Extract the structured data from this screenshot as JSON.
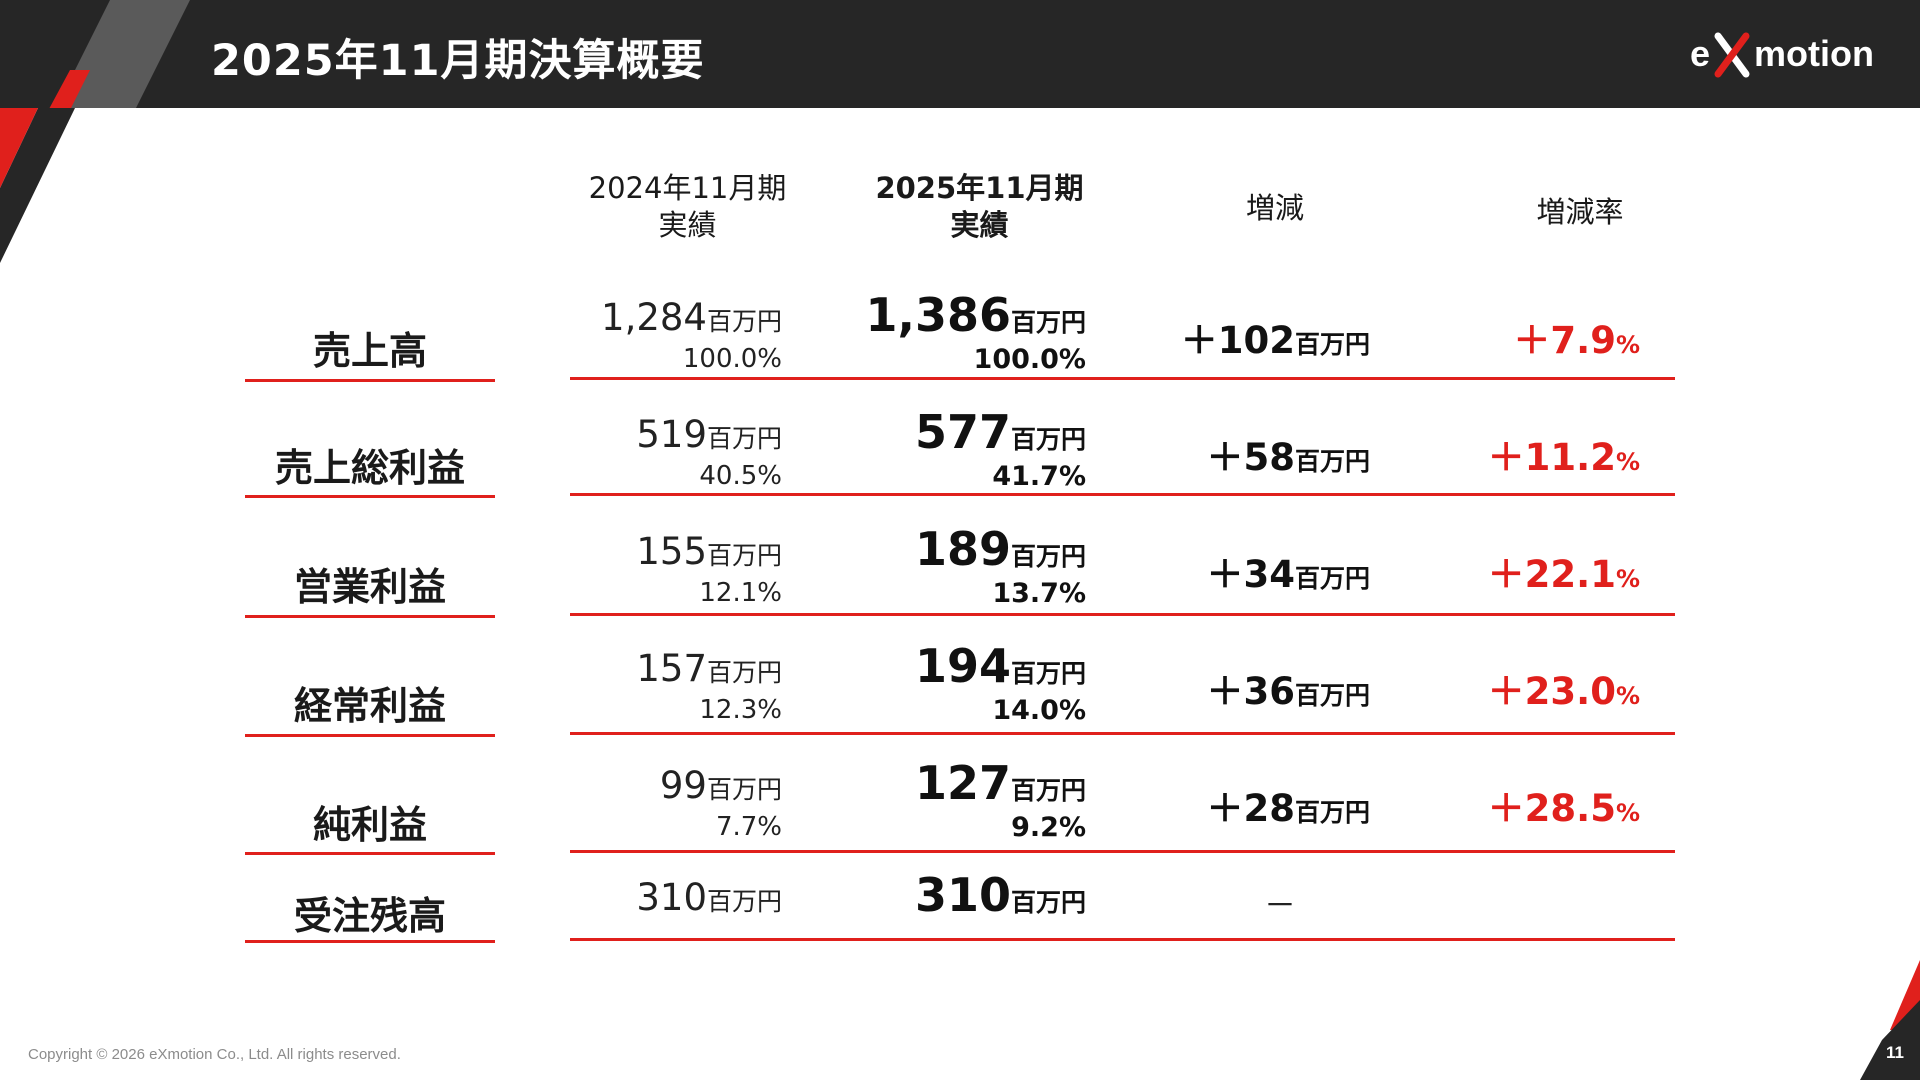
{
  "header": {
    "title": "2025年11月期決算概要",
    "logo_left": "e",
    "logo_right": "motion"
  },
  "columns": {
    "prev_line1": "2024年11月期",
    "prev_line2": "実績",
    "curr_line1": "2025年11月期",
    "curr_line2": "実績",
    "diff": "増減",
    "rate": "増減率"
  },
  "rows": [
    {
      "label": "売上高",
      "prev_value": "1,284",
      "prev_unit": "百万円",
      "prev_pct": "100.0%",
      "curr_value": "1,386",
      "curr_unit": "百万円",
      "curr_pct": "100.0%",
      "diff_value": "＋102",
      "diff_unit": "百万円",
      "rate_value": "＋7.9",
      "rate_unit": "%"
    },
    {
      "label": "売上総利益",
      "prev_value": "519",
      "prev_unit": "百万円",
      "prev_pct": "40.5%",
      "curr_value": "577",
      "curr_unit": "百万円",
      "curr_pct": "41.7%",
      "diff_value": "＋58",
      "diff_unit": "百万円",
      "rate_value": "＋11.2",
      "rate_unit": "%"
    },
    {
      "label": "営業利益",
      "prev_value": "155",
      "prev_unit": "百万円",
      "prev_pct": "12.1%",
      "curr_value": "189",
      "curr_unit": "百万円",
      "curr_pct": "13.7%",
      "diff_value": "＋34",
      "diff_unit": "百万円",
      "rate_value": "＋22.1",
      "rate_unit": "%"
    },
    {
      "label": "経常利益",
      "prev_value": "157",
      "prev_unit": "百万円",
      "prev_pct": "12.3%",
      "curr_value": "194",
      "curr_unit": "百万円",
      "curr_pct": "14.0%",
      "diff_value": "＋36",
      "diff_unit": "百万円",
      "rate_value": "＋23.0",
      "rate_unit": "%"
    },
    {
      "label": "純利益",
      "prev_value": "99",
      "prev_unit": "百万円",
      "prev_pct": "7.7%",
      "curr_value": "127",
      "curr_unit": "百万円",
      "curr_pct": "9.2%",
      "diff_value": "＋28",
      "diff_unit": "百万円",
      "rate_value": "＋28.5",
      "rate_unit": "%"
    },
    {
      "label": "受注残高",
      "prev_value": "310",
      "prev_unit": "百万円",
      "curr_value": "310",
      "curr_unit": "百万円",
      "diff_dash": "－"
    }
  ],
  "footer": {
    "copyright": "Copyright © 2026 eXmotion Co., Ltd. All rights reserved.",
    "page_number": "11"
  },
  "colors": {
    "accent": "#e0201c",
    "header_bg": "#262626",
    "text": "#1a1a1a"
  }
}
